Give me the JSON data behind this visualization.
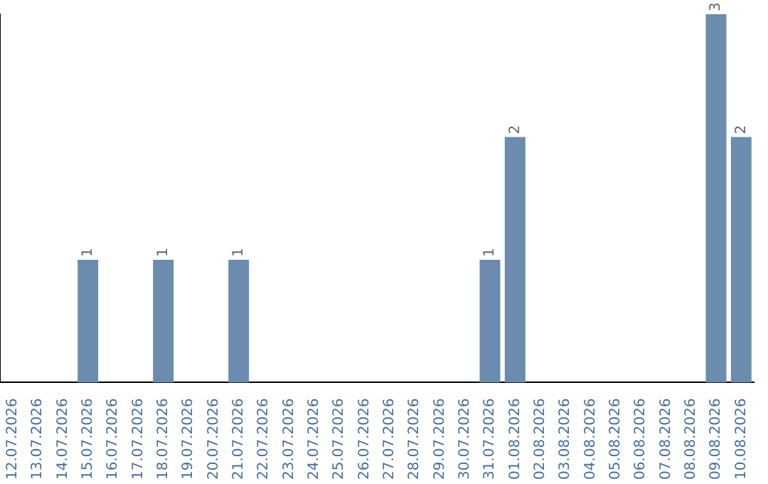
{
  "chart_data": {
    "type": "bar",
    "categories": [
      "12.07.2026",
      "13.07.2026",
      "14.07.2026",
      "15.07.2026",
      "16.07.2026",
      "17.07.2026",
      "18.07.2026",
      "19.07.2026",
      "20.07.2026",
      "21.07.2026",
      "22.07.2026",
      "23.07.2026",
      "24.07.2026",
      "25.07.2026",
      "26.07.2026",
      "27.07.2026",
      "28.07.2026",
      "29.07.2026",
      "30.07.2026",
      "31.07.2026",
      "01.08.2026",
      "02.08.2026",
      "03.08.2026",
      "04.08.2026",
      "05.08.2026",
      "06.08.2026",
      "07.08.2026",
      "08.08.2026",
      "09.08.2026",
      "10.08.2026"
    ],
    "values": [
      0,
      0,
      0,
      1,
      0,
      0,
      1,
      0,
      0,
      1,
      0,
      0,
      0,
      0,
      0,
      0,
      0,
      0,
      0,
      1,
      2,
      0,
      0,
      0,
      0,
      0,
      0,
      0,
      3,
      2
    ],
    "value_labels": [
      null,
      null,
      null,
      "1",
      null,
      null,
      "1",
      null,
      null,
      "1",
      null,
      null,
      null,
      null,
      null,
      null,
      null,
      null,
      null,
      "1",
      "2",
      null,
      null,
      null,
      null,
      null,
      null,
      null,
      "3",
      "2"
    ],
    "color": "#6b8cae",
    "ylim": [
      0,
      3
    ],
    "tick_labels": "x",
    "grid": false,
    "legend": false
  }
}
